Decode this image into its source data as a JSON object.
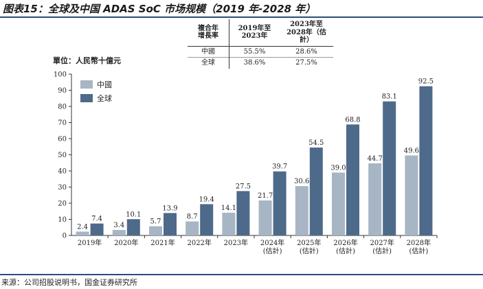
{
  "title": "图表15：全球及中国 ADAS SoC 市场规模（2019 年-2028 年）",
  "source": "来源：公司招股说明书，国金证券研究所",
  "cagr_table": {
    "headers": [
      "複合年\n增長率",
      "2019年至\n2023年",
      "2023年至\n2028年（估計）"
    ],
    "rows": [
      {
        "label": "中國",
        "v1": "55.5%",
        "v2": "28.6%"
      },
      {
        "label": "全球",
        "v1": "38.6%",
        "v2": "27.5%"
      }
    ]
  },
  "unit_label": "單位：人民幣十億元",
  "colors": {
    "china": "#a7b5c4",
    "global": "#4e6a8a",
    "rule": "#2b4a7e"
  },
  "chart_data": {
    "type": "bar",
    "categories": [
      "2019年",
      "2020年",
      "2021年",
      "2022年",
      "2023年",
      "2024年\n(估計)",
      "2025年\n(估計)",
      "2026年\n(估計)",
      "2027年\n(估計)",
      "2028年\n(估計)"
    ],
    "series": [
      {
        "name": "中國",
        "values": [
          2.4,
          3.4,
          5.7,
          8.7,
          14.1,
          21.7,
          30.6,
          39.0,
          44.7,
          49.6
        ],
        "labels": [
          "2.4",
          "3.4",
          "5.7",
          "8.7",
          "14.1",
          "21.7",
          "30.6",
          "39.0",
          "44.7",
          "49.6"
        ]
      },
      {
        "name": "全球",
        "values": [
          7.4,
          10.1,
          13.9,
          19.4,
          27.5,
          39.7,
          54.5,
          68.8,
          83.1,
          92.5
        ],
        "labels": [
          "7.4",
          "10.1",
          "13.9",
          "19.4",
          "27.5",
          "39.7",
          "54.5",
          "68.8",
          "83.1",
          "92.5"
        ]
      }
    ],
    "ylim": [
      0,
      100
    ],
    "yticks": [
      "0",
      "10",
      "20",
      "30",
      "40",
      "50",
      "60",
      "70",
      "80",
      "90",
      "100"
    ],
    "legend": "top-left"
  }
}
